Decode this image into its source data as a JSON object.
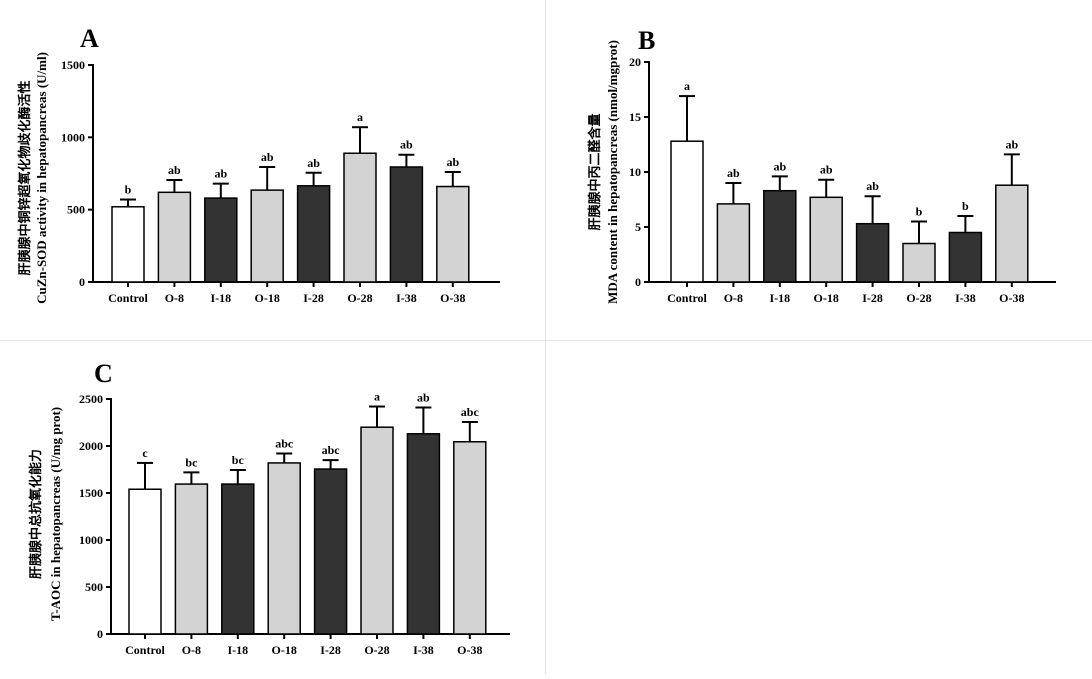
{
  "chart_data": [
    {
      "type": "bar",
      "letter": "A",
      "ylabel_cn": "肝胰腺中铜锌超氧化物歧化酶活性",
      "ylabel_en": "CuZn-SOD activity in hepatopancreas (U/ml)",
      "categories": [
        "Control",
        "O-8",
        "I-18",
        "O-18",
        "I-28",
        "O-28",
        "I-38",
        "O-38"
      ],
      "values": [
        520,
        620,
        580,
        635,
        665,
        890,
        795,
        660
      ],
      "errors": [
        50,
        85,
        100,
        160,
        90,
        180,
        85,
        100
      ],
      "significance": [
        "b",
        "ab",
        "ab",
        "ab",
        "ab",
        "a",
        "ab",
        "ab"
      ],
      "bar_colors": [
        "#ffffff",
        "#d3d3d3",
        "#333333",
        "#d3d3d3",
        "#333333",
        "#d3d3d3",
        "#333333",
        "#d3d3d3"
      ],
      "ylim": [
        0,
        1500
      ],
      "yticks": [
        0,
        500,
        1000,
        1500
      ],
      "grid": false
    },
    {
      "type": "bar",
      "letter": "B",
      "ylabel_cn": "肝胰腺中丙二醛含量",
      "ylabel_en": "MDA  content in hepatopancreas (nmol/mgprot)",
      "categories": [
        "Control",
        "O-8",
        "I-18",
        "O-18",
        "I-28",
        "O-28",
        "I-38",
        "O-38"
      ],
      "values": [
        12.8,
        7.1,
        8.3,
        7.7,
        5.3,
        3.5,
        4.5,
        8.8
      ],
      "errors": [
        4.1,
        1.9,
        1.3,
        1.6,
        2.5,
        2.0,
        1.5,
        2.8
      ],
      "significance": [
        "a",
        "ab",
        "ab",
        "ab",
        "ab",
        "b",
        "b",
        "ab"
      ],
      "bar_colors": [
        "#ffffff",
        "#d3d3d3",
        "#333333",
        "#d3d3d3",
        "#333333",
        "#d3d3d3",
        "#333333",
        "#d3d3d3"
      ],
      "ylim": [
        0,
        20
      ],
      "yticks": [
        0,
        5,
        10,
        15,
        20
      ],
      "grid": false
    },
    {
      "type": "bar",
      "letter": "C",
      "ylabel_cn": "肝胰腺中总抗氧化能力",
      "ylabel_en": "T-AOC  in hepatopancreas (U/mg prot)",
      "categories": [
        "Control",
        "O-8",
        "I-18",
        "O-18",
        "I-28",
        "O-28",
        "I-38",
        "O-38"
      ],
      "values": [
        1540,
        1595,
        1595,
        1820,
        1755,
        2200,
        2130,
        2045
      ],
      "errors": [
        280,
        125,
        150,
        100,
        95,
        220,
        280,
        210
      ],
      "significance": [
        "c",
        "bc",
        "bc",
        "abc",
        "abc",
        "a",
        "ab",
        "abc"
      ],
      "bar_colors": [
        "#ffffff",
        "#d3d3d3",
        "#333333",
        "#d3d3d3",
        "#333333",
        "#d3d3d3",
        "#333333",
        "#d3d3d3"
      ],
      "ylim": [
        0,
        2500
      ],
      "yticks": [
        0,
        500,
        1000,
        1500,
        2000,
        2500
      ],
      "grid": false
    }
  ]
}
